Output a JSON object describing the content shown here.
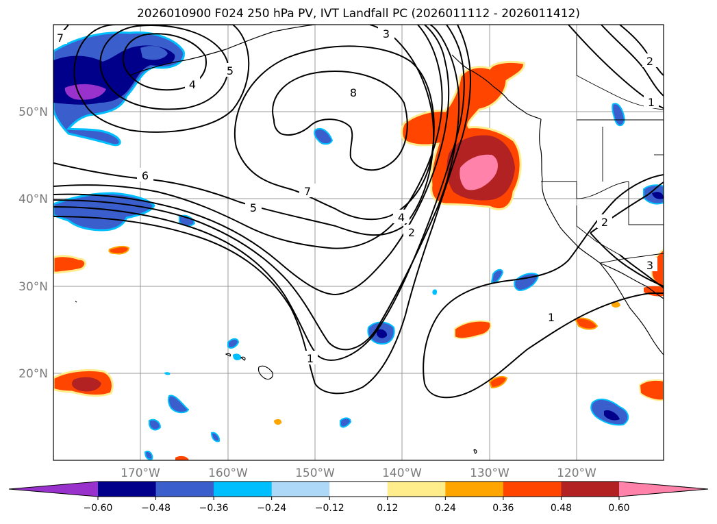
{
  "title": "2026010900 F024 250 hPa PV, IVT Landfall PC (2026011112 - 2026011412)",
  "map": {
    "lon_range": [
      -180,
      -110
    ],
    "lat_range": [
      10,
      60
    ],
    "lat_labels": [
      "20°N",
      "30°N",
      "40°N",
      "50°N"
    ],
    "lon_labels": [
      "170°W",
      "160°W",
      "150°W",
      "140°W",
      "130°W",
      "120°W"
    ],
    "gridlines": true,
    "contour_labels": [
      "1",
      "1",
      "2",
      "2",
      "2",
      "3",
      "3",
      "4",
      "4",
      "5",
      "5",
      "6",
      "7",
      "7",
      "8",
      "1"
    ]
  },
  "colorbar": {
    "ticks": [
      "−0.60",
      "−0.48",
      "−0.36",
      "−0.24",
      "−0.12",
      "0.12",
      "0.24",
      "0.36",
      "0.48",
      "0.60"
    ],
    "colors": [
      "#9932cc",
      "#00008b",
      "#3a5fcd",
      "#00bfff",
      "#add8f7",
      "#ffffff",
      "#ffec8b",
      "#ffa500",
      "#ff4500",
      "#b22222",
      "#ff82ab"
    ],
    "extend": "both"
  }
}
